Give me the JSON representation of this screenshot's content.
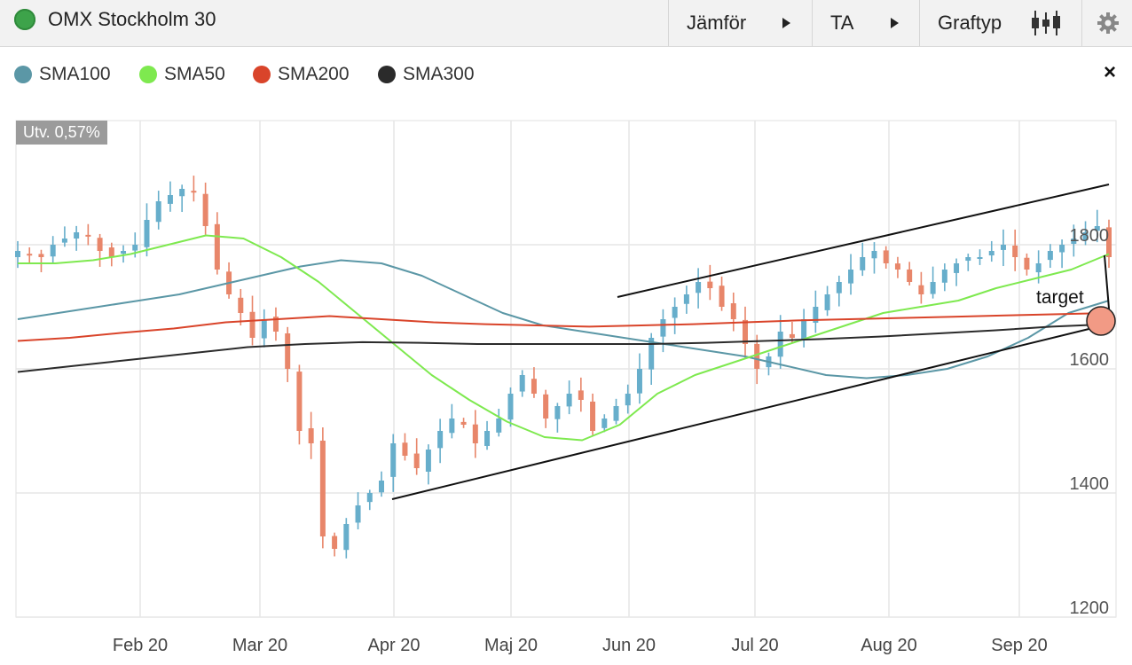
{
  "header": {
    "title": "OMX Stockholm 30",
    "buttons": [
      {
        "label": "Jämför",
        "icon": "play-right-icon"
      },
      {
        "label": "TA",
        "icon": "play-right-icon"
      },
      {
        "label": "Graftyp",
        "icon": "candlestick-icon"
      }
    ],
    "settings_icon": "gear-icon",
    "status_color": "#3da34a"
  },
  "legend": [
    {
      "label": "SMA100",
      "color": "#5b97a6"
    },
    {
      "label": "SMA50",
      "color": "#7ee94f"
    },
    {
      "label": "SMA200",
      "color": "#d9442a"
    },
    {
      "label": "SMA300",
      "color": "#2b2b2b"
    }
  ],
  "close_label": "×",
  "badge": "Utv. 0,57%",
  "annotation": "target",
  "chart_data": {
    "type": "candlestick",
    "x_tick_labels": [
      "Feb 20",
      "Mar 20",
      "Apr 20",
      "Maj 20",
      "Jun 20",
      "Jul 20",
      "Aug 20",
      "Sep 20"
    ],
    "y_tick_labels": [
      "1200",
      "1400",
      "1600",
      "1800"
    ],
    "ylim": [
      1200,
      1800
    ],
    "grid": true,
    "colors": {
      "up": "#67aecb",
      "down": "#e8866a"
    },
    "close_series": [
      1790,
      1785,
      1780,
      1800,
      1810,
      1820,
      1815,
      1790,
      1780,
      1790,
      1800,
      1840,
      1870,
      1880,
      1890,
      1885,
      1830,
      1760,
      1720,
      1690,
      1650,
      1680,
      1660,
      1600,
      1500,
      1480,
      1330,
      1310,
      1350,
      1380,
      1400,
      1420,
      1480,
      1460,
      1440,
      1470,
      1500,
      1520,
      1510,
      1480,
      1500,
      1520,
      1560,
      1590,
      1560,
      1520,
      1540,
      1560,
      1550,
      1500,
      1520,
      1540,
      1560,
      1600,
      1650,
      1680,
      1700,
      1720,
      1740,
      1730,
      1700,
      1680,
      1640,
      1600,
      1620,
      1660,
      1650,
      1680,
      1700,
      1720,
      1740,
      1760,
      1780,
      1790,
      1770,
      1760,
      1740,
      1720,
      1740,
      1760,
      1770,
      1780,
      1780,
      1790,
      1800,
      1780,
      1760,
      1770,
      1790,
      1800,
      1810,
      1820,
      1830,
      1780
    ],
    "sma": [
      {
        "name": "SMA100",
        "values": [
          1680,
          1690,
          1700,
          1710,
          1720,
          1735,
          1750,
          1765,
          1775,
          1770,
          1750,
          1720,
          1690,
          1670,
          1660,
          1650,
          1640,
          1630,
          1620,
          1605,
          1590,
          1585,
          1590,
          1600,
          1620,
          1650,
          1690,
          1710
        ]
      },
      {
        "name": "SMA50",
        "values": [
          1770,
          1770,
          1775,
          1785,
          1800,
          1815,
          1810,
          1780,
          1740,
          1690,
          1640,
          1590,
          1550,
          1515,
          1490,
          1485,
          1510,
          1560,
          1590,
          1610,
          1630,
          1650,
          1670,
          1690,
          1700,
          1710,
          1730,
          1745,
          1760,
          1785
        ]
      },
      {
        "name": "SMA200",
        "values": [
          1645,
          1650,
          1658,
          1665,
          1675,
          1680,
          1685,
          1680,
          1675,
          1672,
          1670,
          1668,
          1670,
          1672,
          1675,
          1678,
          1680,
          1682,
          1684,
          1686,
          1688,
          1690
        ]
      },
      {
        "name": "SMA300",
        "values": [
          1595,
          1605,
          1615,
          1625,
          1635,
          1640,
          1643,
          1642,
          1640,
          1640,
          1640,
          1640,
          1642,
          1645,
          1648,
          1652,
          1657,
          1662,
          1668,
          1672
        ]
      }
    ]
  }
}
